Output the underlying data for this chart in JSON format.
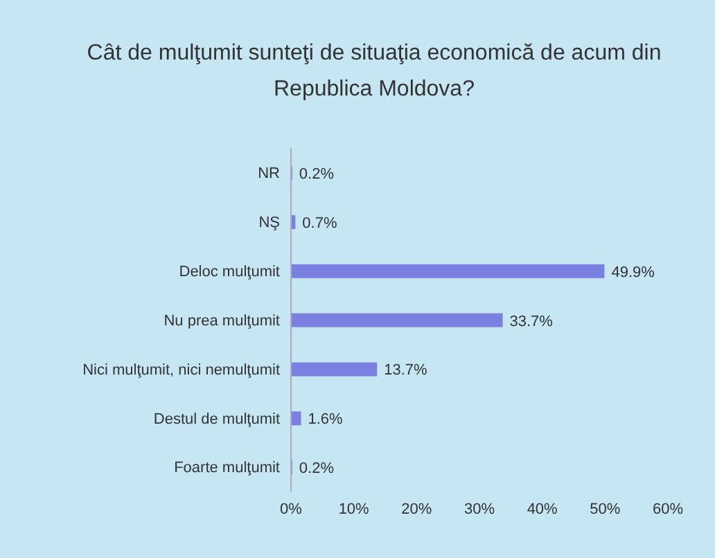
{
  "chart_data": {
    "type": "bar",
    "orientation": "horizontal",
    "title": "Cât de mulţumit sunteţi de situaţia economică de acum din Republica Moldova?",
    "categories": [
      "NR",
      "NŞ",
      "Deloc mulţumit",
      "Nu prea mulţumit",
      "Nici mulţumit, nici nemulţumit",
      "Destul de mulţumit",
      "Foarte mulţumit"
    ],
    "values": [
      0.2,
      0.7,
      49.9,
      33.7,
      13.7,
      1.6,
      0.2
    ],
    "value_labels": [
      "0.2%",
      "0.7%",
      "49.9%",
      "33.7%",
      "13.7%",
      "1.6%",
      "0.2%"
    ],
    "color": "#7b80e0",
    "xlim": [
      0,
      60
    ],
    "xticks": [
      {
        "value": 0,
        "label": "0%"
      },
      {
        "value": 10,
        "label": "10%"
      },
      {
        "value": 20,
        "label": "20%"
      },
      {
        "value": 30,
        "label": "30%"
      },
      {
        "value": 40,
        "label": "40%"
      },
      {
        "value": 50,
        "label": "50%"
      },
      {
        "value": 60,
        "label": "60%"
      }
    ],
    "grid": false,
    "legend": false
  }
}
